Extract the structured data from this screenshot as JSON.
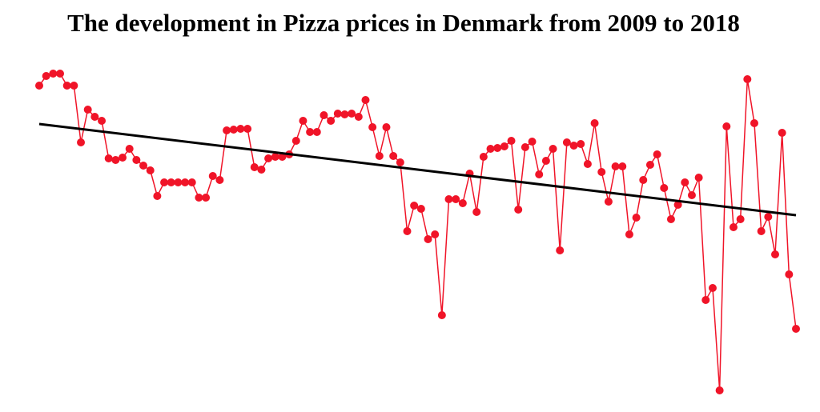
{
  "chart_data": {
    "type": "line",
    "title": "The development in Pizza prices in Denmark from 2009 to 2018",
    "series": [
      {
        "color": "#f01428",
        "values": [
          393,
          405,
          408,
          408,
          393,
          393,
          322,
          363,
          354,
          349,
          302,
          300,
          303,
          314,
          300,
          293,
          287,
          255,
          272,
          272,
          272,
          272,
          272,
          253,
          253,
          280,
          275,
          337,
          338,
          339,
          339,
          291,
          288,
          302,
          304,
          304,
          307,
          324,
          349,
          335,
          335,
          356,
          349,
          358,
          357,
          358,
          354,
          375,
          341,
          305,
          341,
          305,
          297,
          211,
          243,
          239,
          201,
          207,
          106,
          251,
          251,
          246,
          283,
          235,
          304,
          314,
          315,
          317,
          324,
          238,
          316,
          323,
          282,
          299,
          314,
          187,
          322,
          318,
          320,
          295,
          346,
          285,
          248,
          292,
          292,
          207,
          228,
          275,
          294,
          307,
          265,
          226,
          244,
          272,
          256,
          278,
          125,
          140,
          12,
          342,
          216,
          226,
          401,
          346,
          211,
          229,
          182,
          334,
          157,
          89
        ]
      }
    ],
    "trend": {
      "color": "#000000",
      "values": [
        345,
        231
      ]
    },
    "ylim": [
      0,
      500
    ]
  }
}
